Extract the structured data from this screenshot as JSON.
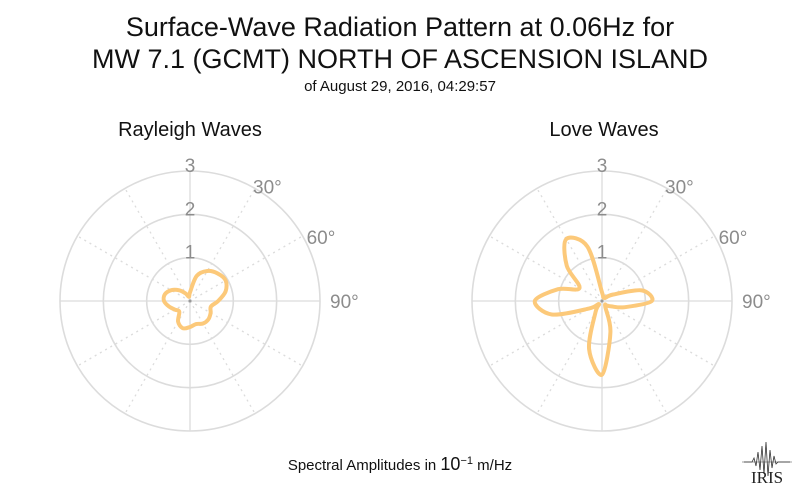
{
  "title_line1": "Surface-Wave Radiation Pattern at 0.06Hz for",
  "title_line2": "MW 7.1 (GCMT) NORTH OF ASCENSION ISLAND",
  "subtitle": "of August 29, 2016, 04:29:57",
  "footnote": {
    "prefix": "Spectral Amplitudes in ",
    "base": "10",
    "exponent": "−1",
    "unit": " m/Hz"
  },
  "logo_text": "IRIS",
  "colors": {
    "curve": "#fcc97a",
    "grid": "#dcdcdc",
    "tick_text": "#8c8c8c"
  },
  "chart_data": [
    {
      "type": "polar-line",
      "title": "Rayleigh Waves",
      "radial_ticks": [
        "1",
        "2",
        "3"
      ],
      "rmax": 3,
      "angle_ticks": [
        "30°",
        "60°",
        "90°"
      ],
      "angle_direction": "clockwise",
      "angle_zero": "north",
      "grid": true,
      "series": [
        {
          "angles_deg": [
            0,
            15,
            30,
            45,
            60,
            75,
            90,
            105,
            120,
            135,
            150,
            165,
            180,
            195,
            210,
            225,
            240,
            255,
            270,
            285,
            300,
            315,
            330,
            345,
            360
          ],
          "r": [
            0.2,
            0.6,
            0.8,
            0.9,
            0.95,
            0.85,
            0.65,
            0.5,
            0.55,
            0.6,
            0.6,
            0.55,
            0.6,
            0.65,
            0.55,
            0.35,
            0.4,
            0.5,
            0.6,
            0.6,
            0.5,
            0.35,
            0.2,
            0.1,
            0.2
          ]
        }
      ]
    },
    {
      "type": "polar-line",
      "title": "Love Waves",
      "radial_ticks": [
        "1",
        "2",
        "3"
      ],
      "rmax": 3,
      "angle_ticks": [
        "30°",
        "60°",
        "90°"
      ],
      "angle_direction": "clockwise",
      "angle_zero": "north",
      "grid": true,
      "series": [
        {
          "angles_deg": [
            0,
            15,
            30,
            45,
            60,
            75,
            90,
            105,
            120,
            135,
            150,
            165,
            180,
            195,
            210,
            225,
            240,
            255,
            270,
            285,
            300,
            315,
            330,
            345,
            360
          ],
          "r": [
            0.2,
            0.1,
            0.1,
            0.1,
            0.3,
            0.95,
            1.15,
            0.55,
            0.25,
            0.15,
            0.15,
            0.75,
            1.7,
            1.15,
            0.3,
            0.1,
            0.35,
            1.2,
            1.55,
            1.05,
            0.6,
            1.15,
            1.65,
            1.3,
            0.2
          ]
        }
      ]
    }
  ]
}
